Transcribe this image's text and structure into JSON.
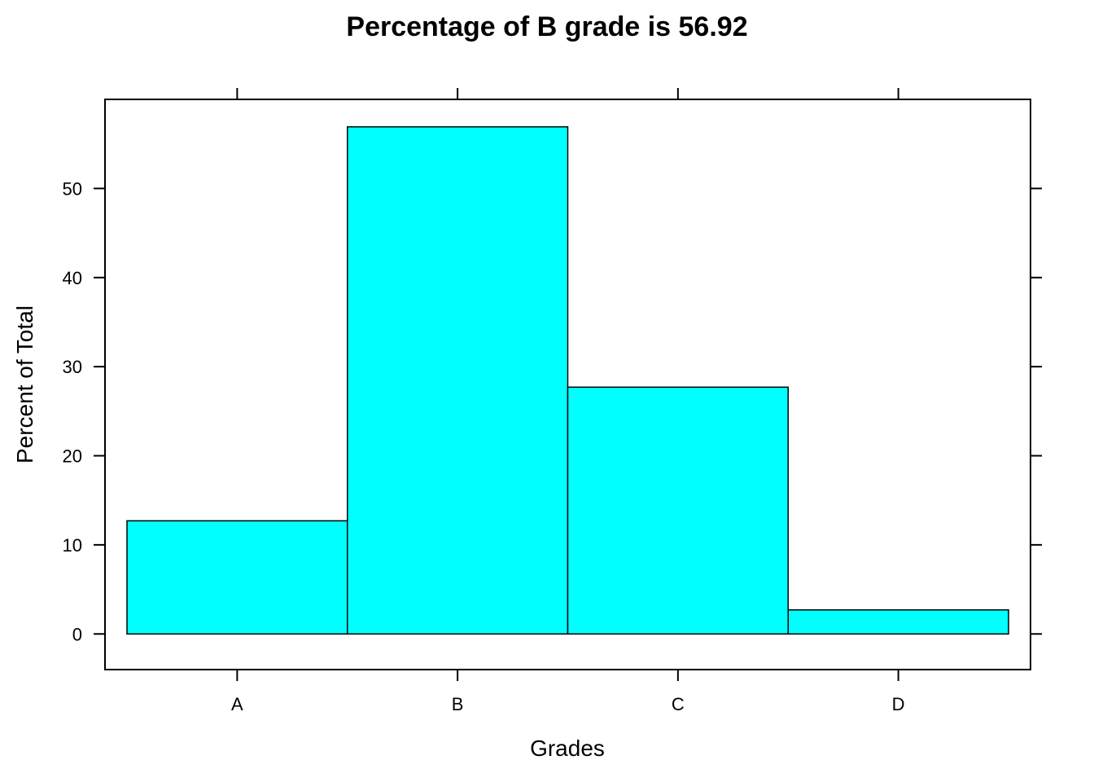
{
  "chart_data": {
    "type": "bar",
    "title": "Percentage of B grade is 56.92",
    "xlabel": "Grades",
    "ylabel": "Percent of Total",
    "categories": [
      "A",
      "B",
      "C",
      "D"
    ],
    "values": [
      12.7,
      56.92,
      27.7,
      2.7
    ],
    "yticks": [
      0,
      10,
      20,
      30,
      40,
      50
    ],
    "ylim": [
      -4,
      60
    ],
    "bar_color": "#00FFFF",
    "grid": false
  }
}
